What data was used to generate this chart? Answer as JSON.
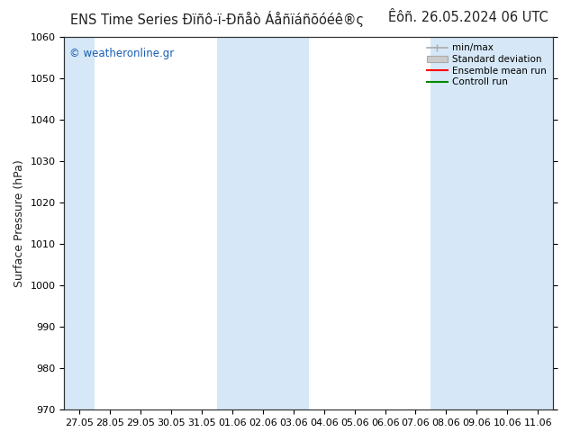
{
  "title_left": "ENS Time Series Đïñô-ï-Đñåò Áåñïáñõóéê®ς",
  "title_right": "Êôñ. 26.05.2024 06 UTC",
  "ylabel": "Surface Pressure (hPa)",
  "ylim": [
    970,
    1060
  ],
  "yticks": [
    970,
    980,
    990,
    1000,
    1010,
    1020,
    1030,
    1040,
    1050,
    1060
  ],
  "xtick_labels": [
    "27.05",
    "28.05",
    "29.05",
    "30.05",
    "31.05",
    "01.06",
    "02.06",
    "03.06",
    "04.06",
    "05.06",
    "06.06",
    "07.06",
    "08.06",
    "09.06",
    "10.06",
    "11.06"
  ],
  "n_xticks": 16,
  "fig_bg": "#ffffff",
  "plot_bg": "#ffffff",
  "band_color": "#d6e8f7",
  "band_positions": [
    0,
    5,
    6,
    7,
    12,
    13,
    14,
    15
  ],
  "legend_labels": [
    "min/max",
    "Standard deviation",
    "Ensemble mean run",
    "Controll run"
  ],
  "legend_line_colors": [
    "#aaaaaa",
    "#cccccc",
    "#ff0000",
    "#008800"
  ],
  "watermark": "© weatheronline.gr",
  "watermark_color": "#1a5fb4",
  "title_fontsize": 10.5,
  "tick_fontsize": 8,
  "ylabel_fontsize": 9
}
